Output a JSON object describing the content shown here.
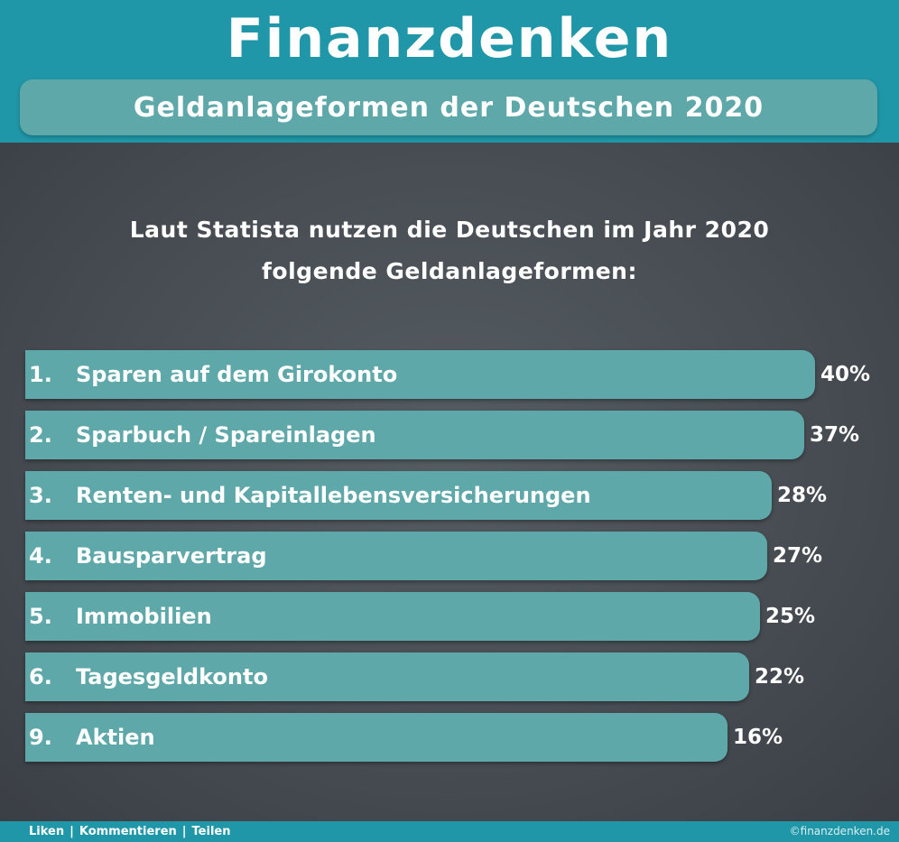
{
  "header": {
    "brand": "Finanzdenken",
    "subtitle": "Geldanlageformen der Deutschen 2020"
  },
  "intro": {
    "line1": "Laut Statista nutzen die Deutschen im Jahr 2020",
    "line2": "folgende Geldanlageformen:"
  },
  "colors": {
    "header_bg": "#1f97a8",
    "bar": "#5fa8aa",
    "board": "#474d53",
    "text": "#ffffff"
  },
  "chart_data": {
    "type": "bar",
    "orientation": "horizontal",
    "ranks": [
      "1.",
      "2.",
      "3.",
      "4.",
      "5.",
      "6.",
      "9."
    ],
    "categories": [
      "Sparen auf dem Girokonto",
      "Sparbuch / Spareinlagen",
      "Renten- und Kapitallebensversicherungen",
      "Bausparvertrag",
      "Immobilien",
      "Tagesgeldkonto",
      "Aktien"
    ],
    "values": [
      40,
      37,
      28,
      27,
      25,
      22,
      16
    ],
    "value_labels": [
      "40%",
      "37%",
      "28%",
      "27%",
      "25%",
      "22%",
      "16%"
    ],
    "unit": "%"
  },
  "footer": {
    "like": "Liken",
    "comment": "Kommentieren",
    "share": "Teilen",
    "separator": "|",
    "copyright": "©finanzdenken.de"
  }
}
